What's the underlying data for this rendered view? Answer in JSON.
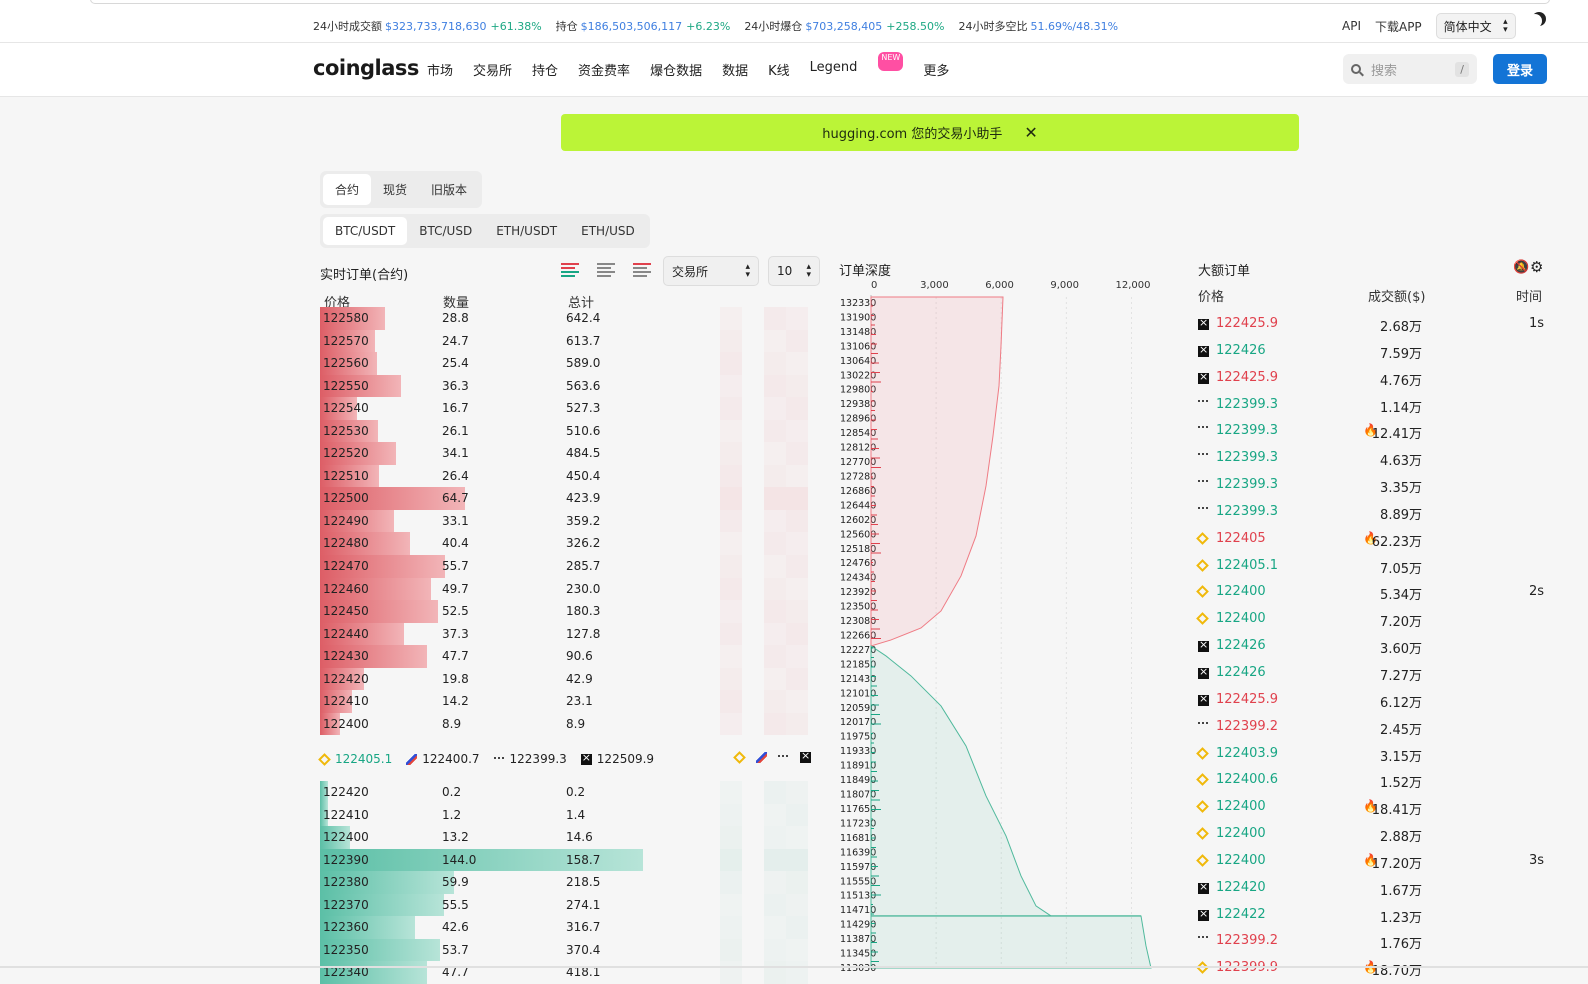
{
  "stats": [
    {
      "label": "24小时成交额",
      "value": "$323,733,718,630",
      "change": "+61.38%"
    },
    {
      "label": "持仓",
      "value": "$186,503,506,117",
      "change": "+6.23%"
    },
    {
      "label": "24小时爆仓",
      "value": "$703,258,405",
      "change": "+258.50%"
    },
    {
      "label": "24小时多空比",
      "value": "51.69%/48.31%",
      "change": ""
    }
  ],
  "topright": {
    "api": "API",
    "download": "下载APP",
    "lang": "简体中文"
  },
  "nav": {
    "logo": "coinglass",
    "menu": [
      "市场",
      "交易所",
      "持仓",
      "资金费率",
      "爆仓数据",
      "数据",
      "K线",
      "Legend",
      "更多"
    ],
    "new_badge": "NEW",
    "search_placeholder": "搜索",
    "search_shortcut": "/",
    "login": "登录"
  },
  "banner": {
    "text": "hugging.com 您的交易小助手",
    "close": "✕"
  },
  "tabs1": [
    "合约",
    "现货",
    "旧版本"
  ],
  "tabs2": [
    "BTC/USDT",
    "BTC/USD",
    "ETH/USDT",
    "ETH/USD"
  ],
  "orderbook": {
    "title": "实时订单(合约)",
    "exchange_select": "交易所",
    "depth_select": "10",
    "headers": {
      "price": "价格",
      "qty": "数量",
      "total": "总计"
    },
    "asks": [
      {
        "price": "122580",
        "qty": "28.8",
        "total": "642.4"
      },
      {
        "price": "122570",
        "qty": "24.7",
        "total": "613.7"
      },
      {
        "price": "122560",
        "qty": "25.4",
        "total": "589.0"
      },
      {
        "price": "122550",
        "qty": "36.3",
        "total": "563.6"
      },
      {
        "price": "122540",
        "qty": "16.7",
        "total": "527.3"
      },
      {
        "price": "122530",
        "qty": "26.1",
        "total": "510.6"
      },
      {
        "price": "122520",
        "qty": "34.1",
        "total": "484.5"
      },
      {
        "price": "122510",
        "qty": "26.4",
        "total": "450.4"
      },
      {
        "price": "122500",
        "qty": "64.7",
        "total": "423.9"
      },
      {
        "price": "122490",
        "qty": "33.1",
        "total": "359.2"
      },
      {
        "price": "122480",
        "qty": "40.4",
        "total": "326.2"
      },
      {
        "price": "122470",
        "qty": "55.7",
        "total": "285.7"
      },
      {
        "price": "122460",
        "qty": "49.7",
        "total": "230.0"
      },
      {
        "price": "122450",
        "qty": "52.5",
        "total": "180.3"
      },
      {
        "price": "122440",
        "qty": "37.3",
        "total": "127.8"
      },
      {
        "price": "122430",
        "qty": "47.7",
        "total": "90.6"
      },
      {
        "price": "122420",
        "qty": "19.8",
        "total": "42.9"
      },
      {
        "price": "122410",
        "qty": "14.2",
        "total": "23.1"
      },
      {
        "price": "122400",
        "qty": "8.9",
        "total": "8.9"
      }
    ],
    "mid": [
      {
        "icon": "binance",
        "price": "122405.1",
        "color": "#18a684"
      },
      {
        "icon": "bitget",
        "price": "122400.7",
        "color": "#222222"
      },
      {
        "icon": "bybit",
        "price": "122399.3",
        "color": "#222222"
      },
      {
        "icon": "okx",
        "price": "122509.9",
        "color": "#222222"
      }
    ],
    "bids": [
      {
        "price": "122420",
        "qty": "0.2",
        "total": "0.2"
      },
      {
        "price": "122410",
        "qty": "1.2",
        "total": "1.4"
      },
      {
        "price": "122400",
        "qty": "13.2",
        "total": "14.6"
      },
      {
        "price": "122390",
        "qty": "144.0",
        "total": "158.7"
      },
      {
        "price": "122380",
        "qty": "59.9",
        "total": "218.5"
      },
      {
        "price": "122370",
        "qty": "55.5",
        "total": "274.1"
      },
      {
        "price": "122360",
        "qty": "42.6",
        "total": "316.7"
      },
      {
        "price": "122350",
        "qty": "53.7",
        "total": "370.4"
      },
      {
        "price": "122340",
        "qty": "47.7",
        "total": "418.1"
      }
    ]
  },
  "depth": {
    "title": "订单深度",
    "x_ticks": [
      "0",
      "3,000",
      "6,000",
      "9,000",
      "12,000"
    ],
    "y_ticks": [
      "132330",
      "131900",
      "131480",
      "131060",
      "130640",
      "130220",
      "129800",
      "129380",
      "128960",
      "128540",
      "128120",
      "127700",
      "127280",
      "126860",
      "126440",
      "126020",
      "125600",
      "125180",
      "124760",
      "124340",
      "123920",
      "123500",
      "123080",
      "122660",
      "122270",
      "121850",
      "121430",
      "121010",
      "120590",
      "120170",
      "119750",
      "119330",
      "118910",
      "118490",
      "118070",
      "117650",
      "117230",
      "116810",
      "116390",
      "115970",
      "115550",
      "115130",
      "114710",
      "114290",
      "113870",
      "113450",
      "113030"
    ]
  },
  "big_orders": {
    "title": "大额订单",
    "headers": {
      "price": "价格",
      "volume": "成交额($)",
      "time": "时间"
    },
    "rows": [
      {
        "ex": "okx",
        "price": "122425.9",
        "side": "sell",
        "vol": "2.68万",
        "fire": false,
        "time": "1s"
      },
      {
        "ex": "okx",
        "price": "122426",
        "side": "buy",
        "vol": "7.59万",
        "fire": false,
        "time": ""
      },
      {
        "ex": "okx",
        "price": "122425.9",
        "side": "sell",
        "vol": "4.76万",
        "fire": false,
        "time": ""
      },
      {
        "ex": "bybit",
        "price": "122399.3",
        "side": "buy",
        "vol": "1.14万",
        "fire": false,
        "time": ""
      },
      {
        "ex": "bybit",
        "price": "122399.3",
        "side": "buy",
        "vol": "12.41万",
        "fire": true,
        "time": ""
      },
      {
        "ex": "bybit",
        "price": "122399.3",
        "side": "buy",
        "vol": "4.63万",
        "fire": false,
        "time": ""
      },
      {
        "ex": "bybit",
        "price": "122399.3",
        "side": "buy",
        "vol": "3.35万",
        "fire": false,
        "time": ""
      },
      {
        "ex": "bybit",
        "price": "122399.3",
        "side": "buy",
        "vol": "8.89万",
        "fire": false,
        "time": ""
      },
      {
        "ex": "binance",
        "price": "122405",
        "side": "sell",
        "vol": "62.23万",
        "fire": true,
        "time": ""
      },
      {
        "ex": "binance",
        "price": "122405.1",
        "side": "buy",
        "vol": "7.05万",
        "fire": false,
        "time": ""
      },
      {
        "ex": "binance",
        "price": "122400",
        "side": "buy",
        "vol": "5.34万",
        "fire": false,
        "time": "2s"
      },
      {
        "ex": "binance",
        "price": "122400",
        "side": "buy",
        "vol": "7.20万",
        "fire": false,
        "time": ""
      },
      {
        "ex": "okx",
        "price": "122426",
        "side": "buy",
        "vol": "3.60万",
        "fire": false,
        "time": ""
      },
      {
        "ex": "okx",
        "price": "122426",
        "side": "buy",
        "vol": "7.27万",
        "fire": false,
        "time": ""
      },
      {
        "ex": "okx",
        "price": "122425.9",
        "side": "sell",
        "vol": "6.12万",
        "fire": false,
        "time": ""
      },
      {
        "ex": "bybit",
        "price": "122399.2",
        "side": "sell",
        "vol": "2.45万",
        "fire": false,
        "time": ""
      },
      {
        "ex": "binance",
        "price": "122403.9",
        "side": "buy",
        "vol": "3.15万",
        "fire": false,
        "time": ""
      },
      {
        "ex": "binance",
        "price": "122400.6",
        "side": "buy",
        "vol": "1.52万",
        "fire": false,
        "time": ""
      },
      {
        "ex": "binance",
        "price": "122400",
        "side": "buy",
        "vol": "18.41万",
        "fire": true,
        "time": ""
      },
      {
        "ex": "binance",
        "price": "122400",
        "side": "buy",
        "vol": "2.88万",
        "fire": false,
        "time": ""
      },
      {
        "ex": "binance",
        "price": "122400",
        "side": "buy",
        "vol": "17.20万",
        "fire": true,
        "time": "3s"
      },
      {
        "ex": "okx",
        "price": "122420",
        "side": "buy",
        "vol": "1.67万",
        "fire": false,
        "time": ""
      },
      {
        "ex": "okx",
        "price": "122422",
        "side": "buy",
        "vol": "1.23万",
        "fire": false,
        "time": ""
      },
      {
        "ex": "bybit",
        "price": "122399.2",
        "side": "sell",
        "vol": "1.76万",
        "fire": false,
        "time": ""
      },
      {
        "ex": "binance",
        "price": "122399.9",
        "side": "sell",
        "vol": "18.70万",
        "fire": true,
        "time": ""
      }
    ]
  },
  "colors": {
    "ask": "#e0414d",
    "bid": "#18a684",
    "accent": "#1374d6",
    "banner": "#bbf437"
  }
}
